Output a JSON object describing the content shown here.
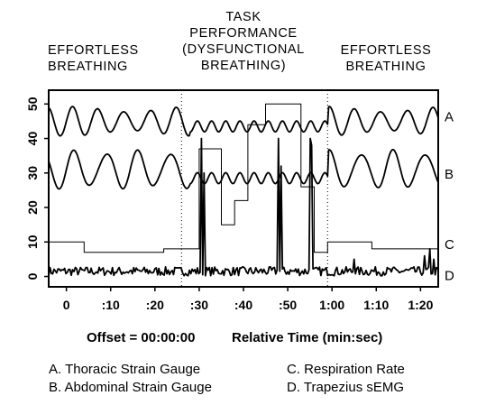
{
  "headers": {
    "left": [
      "EFFORTLESS",
      "BREATHING"
    ],
    "middle": [
      "TASK",
      "PERFORMANCE",
      "(DYSFUNCTIONAL",
      "BREATHING)"
    ],
    "right": [
      "EFFORTLESS",
      "BREATHING"
    ]
  },
  "footer": {
    "offset": "Offset = 00:00:00",
    "axis_title": "Relative Time (min:sec)"
  },
  "legend": {
    "a": "A.  Thoracic Strain Gauge",
    "b": "B.  Abdominal Strain Gauge",
    "c": "C.  Respiration Rate",
    "d": "D.  Trapezius sEMG"
  },
  "chart_data": {
    "type": "line",
    "x_unit": "seconds",
    "xlim": [
      -4,
      84
    ],
    "ylim": [
      -3,
      54
    ],
    "x_ticks": [
      {
        "value": 0,
        "label": "0"
      },
      {
        "value": 10,
        "label": ":10"
      },
      {
        "value": 20,
        "label": ":20"
      },
      {
        "value": 30,
        "label": ":30"
      },
      {
        "value": 40,
        "label": ":40"
      },
      {
        "value": 50,
        "label": ":50"
      },
      {
        "value": 60,
        "label": "1:00"
      },
      {
        "value": 70,
        "label": "1:10"
      },
      {
        "value": 80,
        "label": "1:20"
      }
    ],
    "y_ticks": [
      0,
      10,
      20,
      30,
      40,
      50
    ],
    "phase_boundaries": [
      26,
      59
    ],
    "series": [
      {
        "name": "A",
        "kind": "wave",
        "center": 45,
        "amplitude": 3.5,
        "period": 5.8,
        "task_center": 43.5,
        "task_amplitude": 1.6,
        "task_period": 3.2
      },
      {
        "name": "B",
        "kind": "wave",
        "center": 31,
        "amplitude": 5,
        "period": 7.2,
        "task_center": 28.5,
        "task_amplitude": 1.6,
        "task_period": 3.2
      },
      {
        "name": "C",
        "kind": "step",
        "x": [
          -4,
          4,
          4,
          22,
          22,
          30,
          30,
          35,
          35,
          38,
          38,
          41,
          41,
          45,
          45,
          53,
          53,
          56,
          56,
          59,
          59,
          69,
          69,
          84
        ],
        "y": [
          10,
          10,
          7,
          7,
          8,
          8,
          37,
          37,
          15,
          15,
          22,
          22,
          44,
          44,
          50,
          50,
          26,
          26,
          7,
          7,
          10,
          10,
          8,
          8
        ]
      },
      {
        "name": "D",
        "kind": "noise",
        "baseline": 1.5,
        "noise": 1.3,
        "spikes": [
          {
            "x": 30.5,
            "peak": 40
          },
          {
            "x": 31,
            "peak": 30
          },
          {
            "x": 48,
            "peak": 40
          },
          {
            "x": 48.6,
            "peak": 32
          },
          {
            "x": 55,
            "peak": 40
          },
          {
            "x": 55.5,
            "peak": 38
          },
          {
            "x": 65,
            "peak": 5
          },
          {
            "x": 81,
            "peak": 6
          },
          {
            "x": 82,
            "peak": 8
          },
          {
            "x": 83,
            "peak": 5
          }
        ]
      }
    ]
  }
}
